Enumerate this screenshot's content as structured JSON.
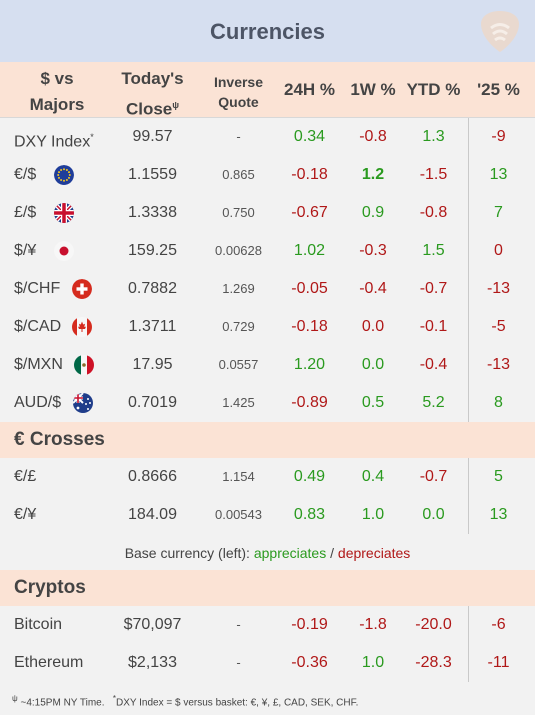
{
  "title": "Currencies",
  "logo": "guitar-pick-logo",
  "columns": {
    "pair_line1": "$ vs",
    "pair_line2": "Majors",
    "close_line1": "Today's",
    "close_line2": "Close",
    "close_marker": "ψ",
    "inverse_line1": "Inverse",
    "inverse_line2": "Quote",
    "h24": "24H %",
    "w1": "1W %",
    "ytd": "YTD %",
    "y25": "'25 %"
  },
  "majors": [
    {
      "name": "DXY Index",
      "marker": "*",
      "flag": "",
      "close": "99.57",
      "inverse": "-",
      "h24": "0.34",
      "w1": "-0.8",
      "ytd": "1.3",
      "y25": "-9"
    },
    {
      "name": "€/$",
      "flag": "eu-flag-icon",
      "close": "1.1559",
      "inverse": "0.865",
      "h24": "-0.18",
      "w1": "1.2",
      "ytd": "-1.5",
      "y25": "13"
    },
    {
      "name": "£/$",
      "flag": "uk-flag-icon",
      "close": "1.3338",
      "inverse": "0.750",
      "h24": "-0.67",
      "w1": "0.9",
      "ytd": "-0.8",
      "y25": "7"
    },
    {
      "name": "$/¥",
      "flag": "japan-flag-icon",
      "close": "159.25",
      "inverse": "0.00628",
      "h24": "1.02",
      "w1": "-0.3",
      "ytd": "1.5",
      "y25": "0"
    },
    {
      "name": "$/CHF",
      "flag": "swiss-flag-icon",
      "close": "0.7882",
      "inverse": "1.269",
      "h24": "-0.05",
      "w1": "-0.4",
      "ytd": "-0.7",
      "y25": "-13"
    },
    {
      "name": "$/CAD",
      "flag": "canada-flag-icon",
      "close": "1.3711",
      "inverse": "0.729",
      "h24": "-0.18",
      "w1": "0.0",
      "ytd": "-0.1",
      "y25": "-5"
    },
    {
      "name": "$/MXN",
      "flag": "mexico-flag-icon",
      "close": "17.95",
      "inverse": "0.0557",
      "h24": "1.20",
      "w1": "0.0",
      "ytd": "-0.4",
      "y25": "-13"
    },
    {
      "name": "AUD/$",
      "flag": "australia-flag-icon",
      "close": "0.7019",
      "inverse": "1.425",
      "h24": "-0.89",
      "w1": "0.5",
      "ytd": "5.2",
      "y25": "8"
    }
  ],
  "crosses_title": "€ Crosses",
  "crosses": [
    {
      "name": "€/£",
      "close": "0.8666",
      "inverse": "1.154",
      "h24": "0.49",
      "w1": "0.4",
      "ytd": "-0.7",
      "y25": "5"
    },
    {
      "name": "€/¥",
      "close": "184.09",
      "inverse": "0.00543",
      "h24": "0.83",
      "w1": "1.0",
      "ytd": "0.0",
      "y25": "13"
    }
  ],
  "legend": {
    "prefix": "Base currency (left):",
    "appreciates": "appreciates",
    "separator": "/",
    "depreciates": "depreciates"
  },
  "cryptos_title": "Cryptos",
  "cryptos": [
    {
      "name": "Bitcoin",
      "close": "$70,097",
      "inverse": "-",
      "h24": "-0.19",
      "w1": "-1.8",
      "ytd": "-20.0",
      "y25": "-6"
    },
    {
      "name": "Ethereum",
      "close": "$2,133",
      "inverse": "-",
      "h24": "-0.36",
      "w1": "1.0",
      "ytd": "-28.3",
      "y25": "-11"
    }
  ],
  "footnotes": {
    "close_marker": "ψ",
    "close_note": "~4:15PM NY Time.",
    "dxy_marker": "*",
    "dxy_note": "DXY Index = $ versus basket: €, ¥, £, CAD, SEK, CHF."
  },
  "colors": {
    "title_bg": "#d6dff0",
    "header_bg": "#fbe3d5",
    "positive": "#2a9a1f",
    "negative": "#b01818"
  }
}
